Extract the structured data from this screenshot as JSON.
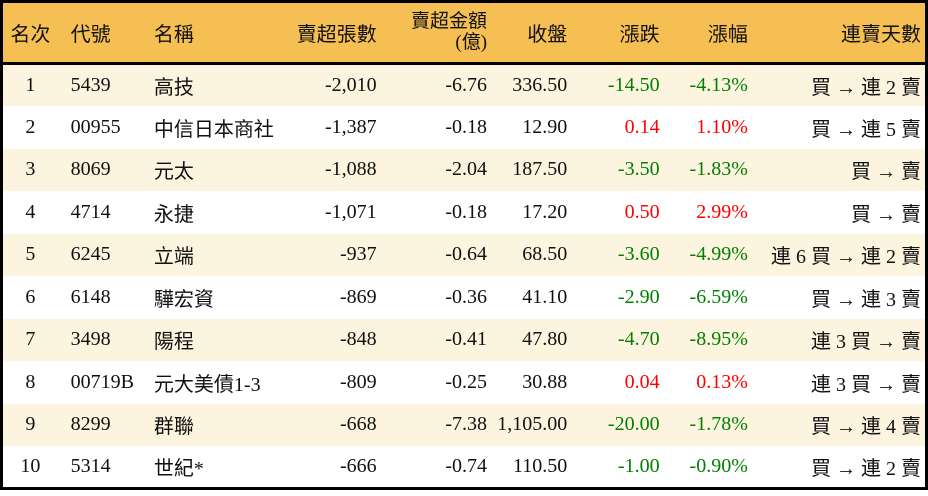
{
  "colors": {
    "header_bg": "#f6bf53",
    "row_alt_bg": "#fdf4df",
    "row_bg": "#ffffff",
    "up_red": "#fe0000",
    "down_green": "#008000",
    "border": "#000000"
  },
  "table": {
    "columns": [
      {
        "key": "rank",
        "label": "名次",
        "align": "center"
      },
      {
        "key": "code",
        "label": "代號",
        "align": "left"
      },
      {
        "key": "name",
        "label": "名稱",
        "align": "left"
      },
      {
        "key": "sell_volume",
        "label": "賣超張數",
        "align": "right"
      },
      {
        "key": "sell_amount",
        "label": "賣超金額",
        "label2": "(億)",
        "align": "right"
      },
      {
        "key": "close",
        "label": "收盤",
        "align": "right"
      },
      {
        "key": "change",
        "label": "漲跌",
        "align": "right"
      },
      {
        "key": "change_pct",
        "label": "漲幅",
        "align": "right"
      },
      {
        "key": "sell_days",
        "label": "連賣天數",
        "align": "right"
      }
    ],
    "rows": [
      {
        "rank": "1",
        "code": "5439",
        "name": "高技",
        "sell_volume": "-2,010",
        "sell_amount": "-6.76",
        "close": "336.50",
        "change": "-14.50",
        "change_pct": "-4.13%",
        "trend": "down",
        "sell_days": "買 → 連 2 賣"
      },
      {
        "rank": "2",
        "code": "00955",
        "name": "中信日本商社",
        "sell_volume": "-1,387",
        "sell_amount": "-0.18",
        "close": "12.90",
        "change": "0.14",
        "change_pct": "1.10%",
        "trend": "up",
        "sell_days": "買 → 連 5 賣"
      },
      {
        "rank": "3",
        "code": "8069",
        "name": "元太",
        "sell_volume": "-1,088",
        "sell_amount": "-2.04",
        "close": "187.50",
        "change": "-3.50",
        "change_pct": "-1.83%",
        "trend": "down",
        "sell_days": "買 → 賣"
      },
      {
        "rank": "4",
        "code": "4714",
        "name": "永捷",
        "sell_volume": "-1,071",
        "sell_amount": "-0.18",
        "close": "17.20",
        "change": "0.50",
        "change_pct": "2.99%",
        "trend": "up",
        "sell_days": "買 → 賣"
      },
      {
        "rank": "5",
        "code": "6245",
        "name": "立端",
        "sell_volume": "-937",
        "sell_amount": "-0.64",
        "close": "68.50",
        "change": "-3.60",
        "change_pct": "-4.99%",
        "trend": "down",
        "sell_days": "連 6 買 → 連 2 賣"
      },
      {
        "rank": "6",
        "code": "6148",
        "name": "驊宏資",
        "sell_volume": "-869",
        "sell_amount": "-0.36",
        "close": "41.10",
        "change": "-2.90",
        "change_pct": "-6.59%",
        "trend": "down",
        "sell_days": "買 → 連 3 賣"
      },
      {
        "rank": "7",
        "code": "3498",
        "name": "陽程",
        "sell_volume": "-848",
        "sell_amount": "-0.41",
        "close": "47.80",
        "change": "-4.70",
        "change_pct": "-8.95%",
        "trend": "down",
        "sell_days": "連 3 買 → 賣"
      },
      {
        "rank": "8",
        "code": "00719B",
        "name": "元大美債1-3",
        "sell_volume": "-809",
        "sell_amount": "-0.25",
        "close": "30.88",
        "change": "0.04",
        "change_pct": "0.13%",
        "trend": "up",
        "sell_days": "連 3 買 → 賣"
      },
      {
        "rank": "9",
        "code": "8299",
        "name": "群聯",
        "sell_volume": "-668",
        "sell_amount": "-7.38",
        "close": "1,105.00",
        "change": "-20.00",
        "change_pct": "-1.78%",
        "trend": "down",
        "sell_days": "買 → 連 4 賣"
      },
      {
        "rank": "10",
        "code": "5314",
        "name": "世紀*",
        "sell_volume": "-666",
        "sell_amount": "-0.74",
        "close": "110.50",
        "change": "-1.00",
        "change_pct": "-0.90%",
        "trend": "down",
        "sell_days": "買 → 連 2 賣"
      }
    ]
  },
  "chart_data": {
    "type": "table",
    "title": "",
    "columns": [
      "名次",
      "代號",
      "名稱",
      "賣超張數",
      "賣超金額(億)",
      "收盤",
      "漲跌",
      "漲幅",
      "連賣天數"
    ],
    "rows": [
      [
        "1",
        "5439",
        "高技",
        "-2,010",
        "-6.76",
        "336.50",
        "-14.50",
        "-4.13%",
        "買 → 連 2 賣"
      ],
      [
        "2",
        "00955",
        "中信日本商社",
        "-1,387",
        "-0.18",
        "12.90",
        "0.14",
        "1.10%",
        "買 → 連 5 賣"
      ],
      [
        "3",
        "8069",
        "元太",
        "-1,088",
        "-2.04",
        "187.50",
        "-3.50",
        "-1.83%",
        "買 → 賣"
      ],
      [
        "4",
        "4714",
        "永捷",
        "-1,071",
        "-0.18",
        "17.20",
        "0.50",
        "2.99%",
        "買 → 賣"
      ],
      [
        "5",
        "6245",
        "立端",
        "-937",
        "-0.64",
        "68.50",
        "-3.60",
        "-4.99%",
        "連 6 買 → 連 2 賣"
      ],
      [
        "6",
        "6148",
        "驊宏資",
        "-869",
        "-0.36",
        "41.10",
        "-2.90",
        "-6.59%",
        "買 → 連 3 賣"
      ],
      [
        "7",
        "3498",
        "陽程",
        "-848",
        "-0.41",
        "47.80",
        "-4.70",
        "-8.95%",
        "連 3 買 → 賣"
      ],
      [
        "8",
        "00719B",
        "元大美債1-3",
        "-809",
        "-0.25",
        "30.88",
        "0.04",
        "0.13%",
        "連 3 買 → 賣"
      ],
      [
        "9",
        "8299",
        "群聯",
        "-668",
        "-7.38",
        "1,105.00",
        "-20.00",
        "-1.78%",
        "買 → 連 4 賣"
      ],
      [
        "10",
        "5314",
        "世紀*",
        "-666",
        "-0.74",
        "110.50",
        "-1.00",
        "-0.90%",
        "買 → 連 2 賣"
      ]
    ],
    "notes": "negative 漲跌/漲幅 rendered green, positive rendered red"
  }
}
